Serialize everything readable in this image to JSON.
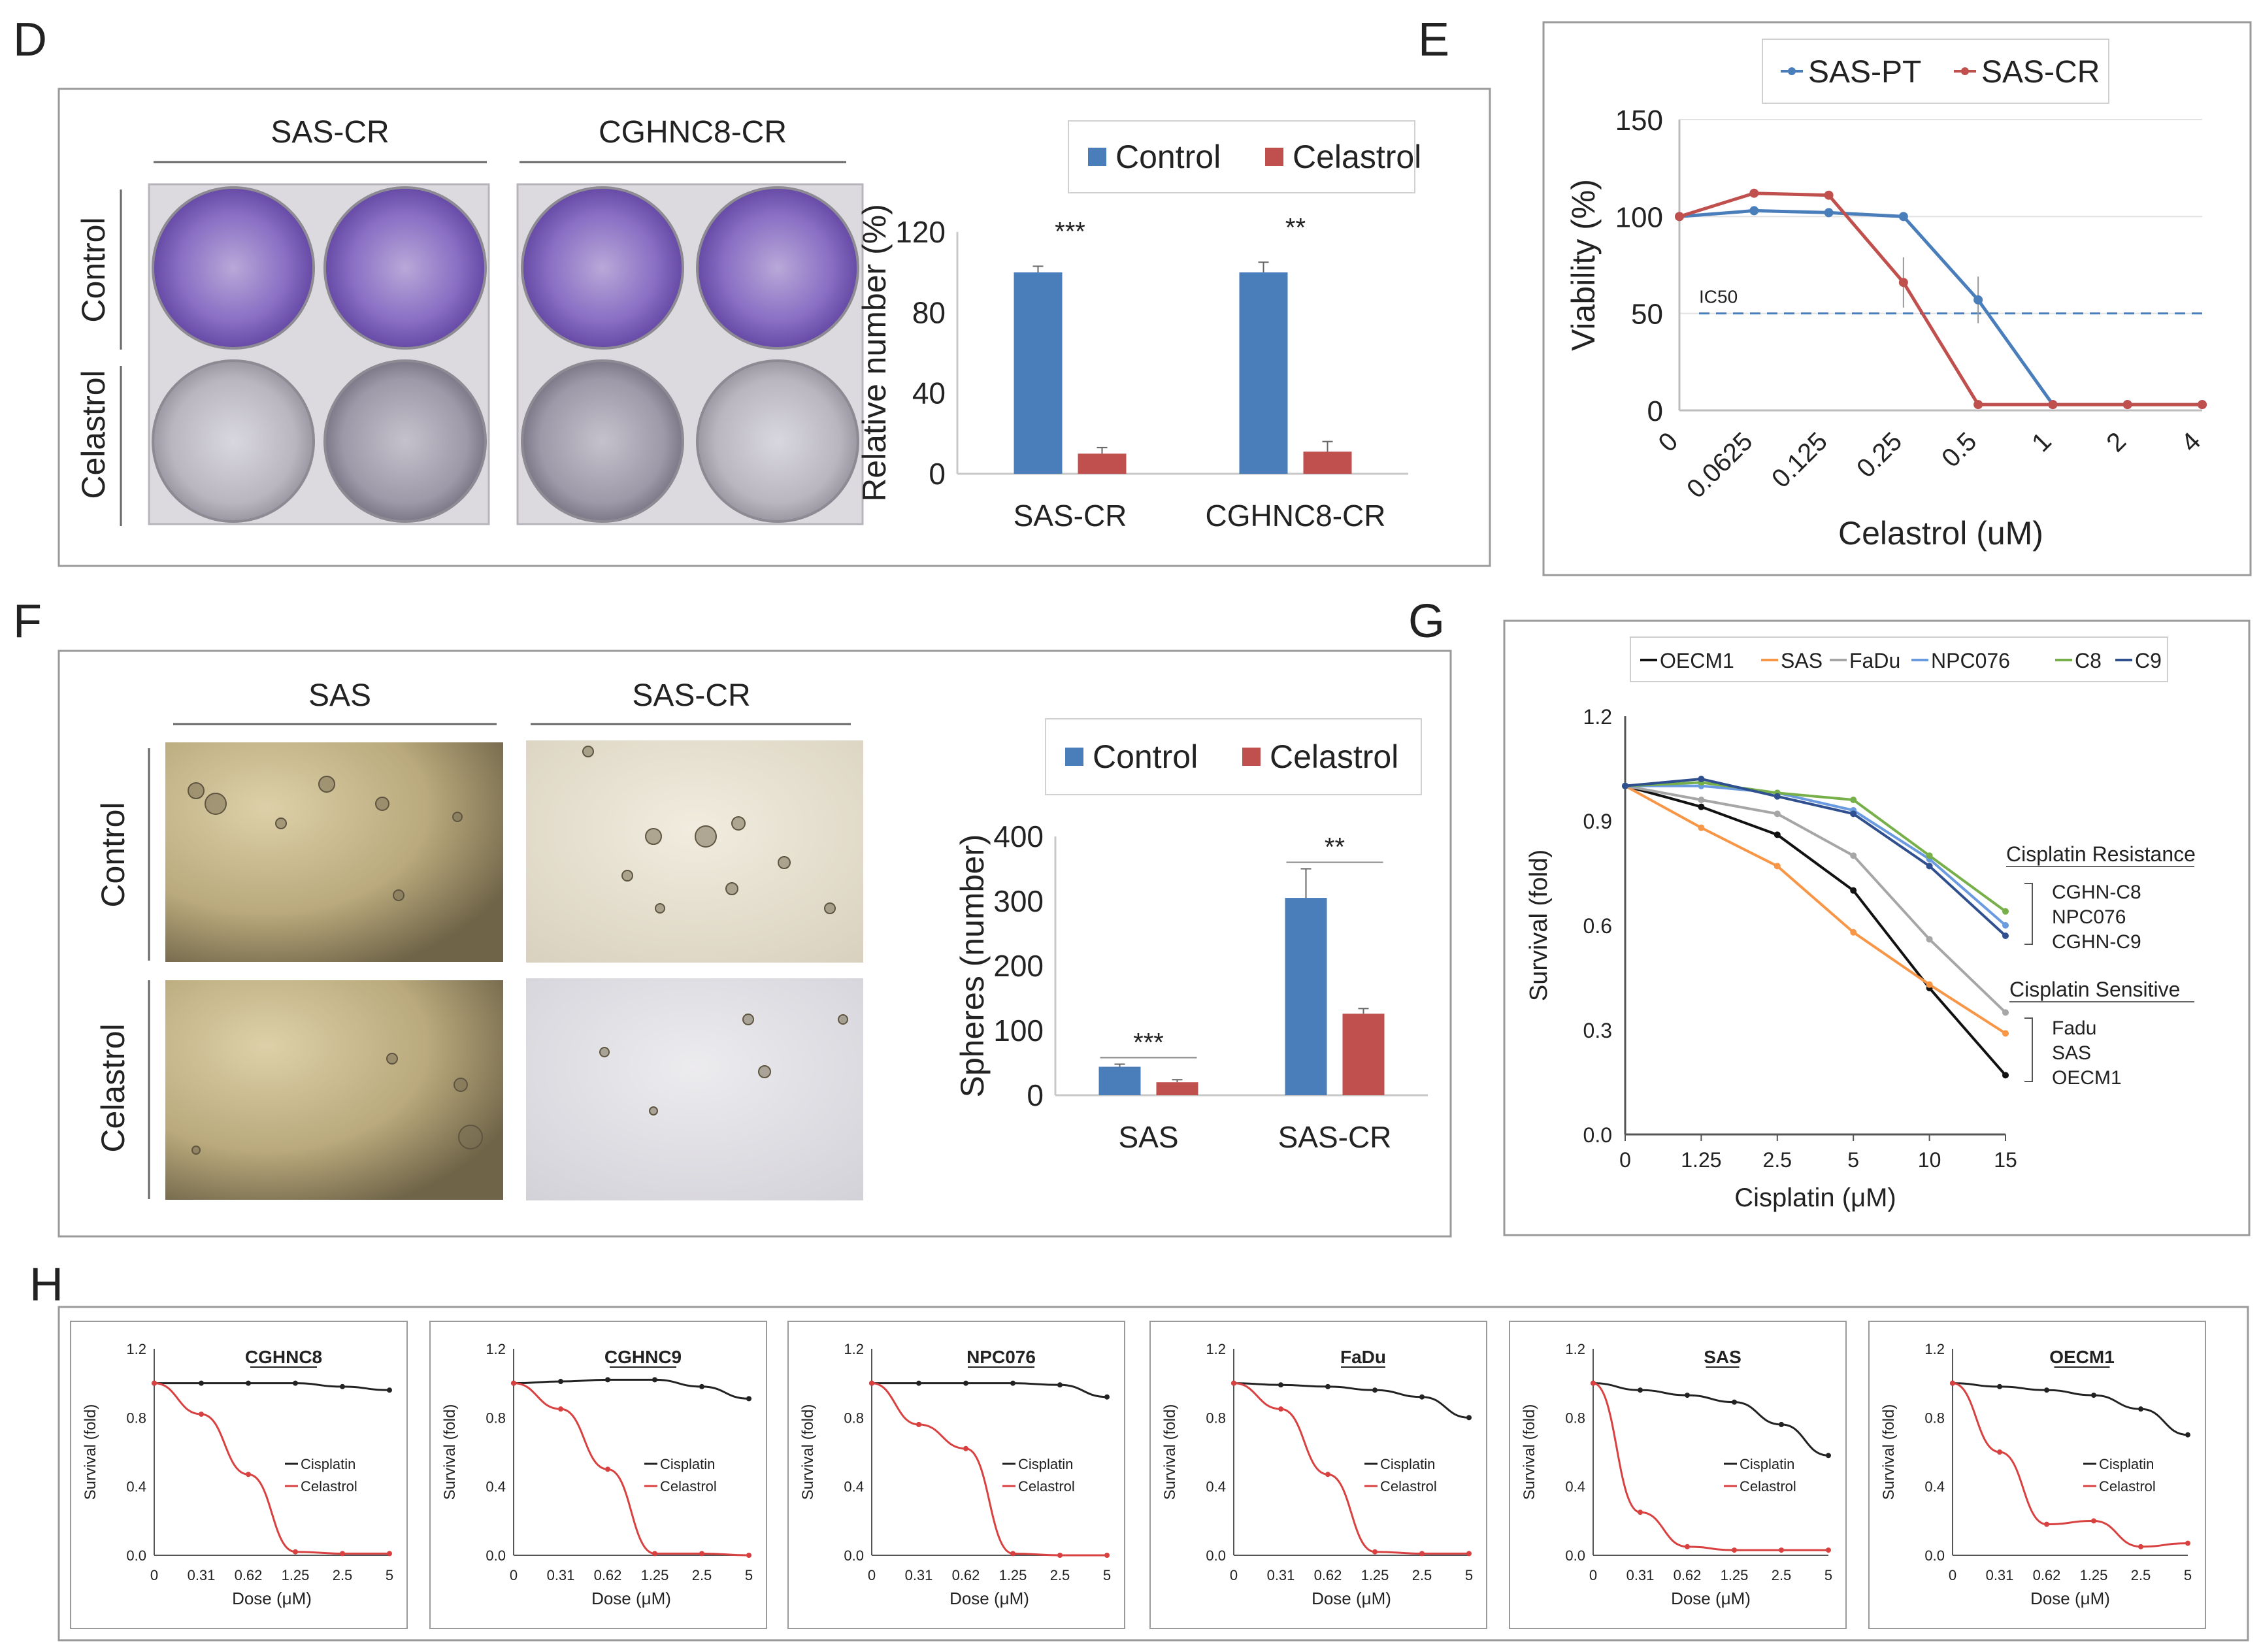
{
  "colors": {
    "blue": "#4a7ebb",
    "red": "#c0504d",
    "black": "#111111",
    "orange": "#f79646",
    "gray": "#a6a6a6",
    "lightblue": "#6a9ae0",
    "green": "#77b04a",
    "navy": "#2f4f8f"
  },
  "panels": {
    "D": {
      "letter": "D",
      "photo_titles": [
        "SAS-CR",
        "CGHNC8-CR"
      ],
      "row_labels": [
        "Control",
        "Celastrol"
      ]
    },
    "E": {
      "letter": "E"
    },
    "F": {
      "letter": "F",
      "photo_titles": [
        "SAS",
        "SAS-CR"
      ],
      "row_labels": [
        "Control",
        "Celastrol"
      ]
    },
    "G": {
      "letter": "G"
    },
    "H": {
      "letter": "H"
    }
  },
  "chart_data": [
    {
      "id": "D-bar",
      "type": "bar",
      "title": "",
      "xlabel": "",
      "ylabel": "Relative number (%)",
      "categories": [
        "SAS-CR",
        "CGHNC8-CR"
      ],
      "series": [
        {
          "name": "Control",
          "color": "#4a7ebb",
          "values": [
            100,
            100
          ],
          "errors": [
            3,
            5
          ]
        },
        {
          "name": "Celastrol",
          "color": "#c0504d",
          "values": [
            10,
            11
          ],
          "errors": [
            3,
            5
          ]
        }
      ],
      "ylim": [
        0,
        120
      ],
      "yticks": [
        0,
        40,
        80,
        120
      ],
      "significance": [
        "***",
        "**"
      ],
      "legend": "top",
      "grid": false
    },
    {
      "id": "E-line",
      "type": "line",
      "title": "",
      "xlabel": "Celastrol (uM)",
      "ylabel": "Viability (%)",
      "categories": [
        "0",
        "0.0625",
        "0.125",
        "0.25",
        "0.5",
        "1",
        "2",
        "4"
      ],
      "series": [
        {
          "name": "SAS-PT",
          "color": "#4a7ebb",
          "values": [
            100,
            103,
            102,
            100,
            57,
            3,
            3,
            3
          ],
          "errors": [
            0,
            1,
            1,
            2,
            12,
            0,
            1,
            1
          ]
        },
        {
          "name": "SAS-CR",
          "color": "#c0504d",
          "values": [
            100,
            112,
            111,
            66,
            3,
            3,
            3,
            3
          ],
          "errors": [
            0,
            2,
            2,
            13,
            0,
            0,
            0,
            0
          ]
        }
      ],
      "ylim": [
        0,
        150
      ],
      "yticks": [
        0,
        50,
        100,
        150
      ],
      "reference_line": {
        "value": 50,
        "label": "IC50"
      },
      "legend": "top",
      "grid": true
    },
    {
      "id": "F-bar",
      "type": "bar",
      "title": "",
      "xlabel": "",
      "ylabel": "Spheres (number)",
      "categories": [
        "SAS",
        "SAS-CR"
      ],
      "series": [
        {
          "name": "Control",
          "color": "#4a7ebb",
          "values": [
            44,
            305
          ],
          "errors": [
            4,
            45
          ]
        },
        {
          "name": "Celastrol",
          "color": "#c0504d",
          "values": [
            20,
            126
          ],
          "errors": [
            4,
            8
          ]
        }
      ],
      "ylim": [
        0,
        400
      ],
      "yticks": [
        0,
        100,
        200,
        300,
        400
      ],
      "significance": [
        "***",
        "**"
      ],
      "legend": "top",
      "grid": false
    },
    {
      "id": "G-line",
      "type": "line",
      "title": "",
      "xlabel": "Cisplatin (μM)",
      "ylabel": "Survival  (fold)",
      "categories": [
        "0",
        "1.25",
        "2.5",
        "5",
        "10",
        "15"
      ],
      "series": [
        {
          "name": "OECM1",
          "color": "#111111",
          "values": [
            1.0,
            0.94,
            0.86,
            0.7,
            0.42,
            0.17
          ]
        },
        {
          "name": "SAS",
          "color": "#f79646",
          "values": [
            1.0,
            0.88,
            0.77,
            0.58,
            0.43,
            0.29
          ]
        },
        {
          "name": "FaDu",
          "color": "#a6a6a6",
          "values": [
            1.0,
            0.96,
            0.92,
            0.8,
            0.56,
            0.35
          ]
        },
        {
          "name": "NPC076",
          "color": "#6a9ae0",
          "values": [
            1.0,
            1.0,
            0.98,
            0.93,
            0.79,
            0.6
          ]
        },
        {
          "name": "C8",
          "color": "#77b04a",
          "values": [
            1.0,
            1.01,
            0.98,
            0.96,
            0.8,
            0.64
          ]
        },
        {
          "name": "C9",
          "color": "#2f4f8f",
          "values": [
            1.0,
            1.02,
            0.97,
            0.92,
            0.77,
            0.57
          ]
        }
      ],
      "ylim": [
        0,
        1.2
      ],
      "yticks": [
        "0.0",
        "0.3",
        "0.6",
        "0.9",
        "1.2"
      ],
      "legend": "top",
      "annotations": {
        "resistance_title": "Cisplatin Resistance",
        "resistance_lines": [
          "CGHN-C8",
          "NPC076",
          "CGHN-C9"
        ],
        "sensitive_title": "Cisplatin Sensitive",
        "sensitive_lines": [
          "Fadu",
          "SAS",
          "OECM1"
        ]
      }
    },
    {
      "id": "H-small-multiples",
      "type": "line",
      "xlabel": "Dose (μM)",
      "ylabel": "Survival (fold)",
      "categories": [
        "0",
        "0.31",
        "0.62",
        "1.25",
        "2.5",
        "5"
      ],
      "ylim": [
        0,
        1.2
      ],
      "yticks": [
        "0.0",
        "0.4",
        "0.8",
        "1.2"
      ],
      "series_names": [
        "Cisplatin",
        "Celastrol"
      ],
      "panels": [
        {
          "title": "CGHNC8",
          "cisplatin": [
            1.0,
            1.0,
            1.0,
            1.0,
            0.98,
            0.96
          ],
          "celastrol": [
            1.0,
            0.82,
            0.47,
            0.02,
            0.01,
            0.01
          ]
        },
        {
          "title": "CGHNC9",
          "cisplatin": [
            1.0,
            1.01,
            1.02,
            1.02,
            0.98,
            0.91
          ],
          "celastrol": [
            1.0,
            0.85,
            0.5,
            0.01,
            0.01,
            0.0
          ]
        },
        {
          "title": "NPC076",
          "cisplatin": [
            1.0,
            1.0,
            1.0,
            1.0,
            0.99,
            0.92
          ],
          "celastrol": [
            1.0,
            0.76,
            0.62,
            0.01,
            0.0,
            0.0
          ]
        },
        {
          "title": "FaDu",
          "cisplatin": [
            1.0,
            0.99,
            0.98,
            0.96,
            0.92,
            0.8
          ],
          "celastrol": [
            1.0,
            0.85,
            0.47,
            0.02,
            0.01,
            0.01
          ]
        },
        {
          "title": "SAS",
          "cisplatin": [
            1.0,
            0.96,
            0.93,
            0.89,
            0.76,
            0.58
          ],
          "celastrol": [
            1.0,
            0.25,
            0.05,
            0.03,
            0.03,
            0.03
          ]
        },
        {
          "title": "OECM1",
          "cisplatin": [
            1.0,
            0.98,
            0.96,
            0.93,
            0.85,
            0.7
          ],
          "celastrol": [
            1.0,
            0.6,
            0.18,
            0.2,
            0.05,
            0.07
          ]
        }
      ]
    }
  ]
}
